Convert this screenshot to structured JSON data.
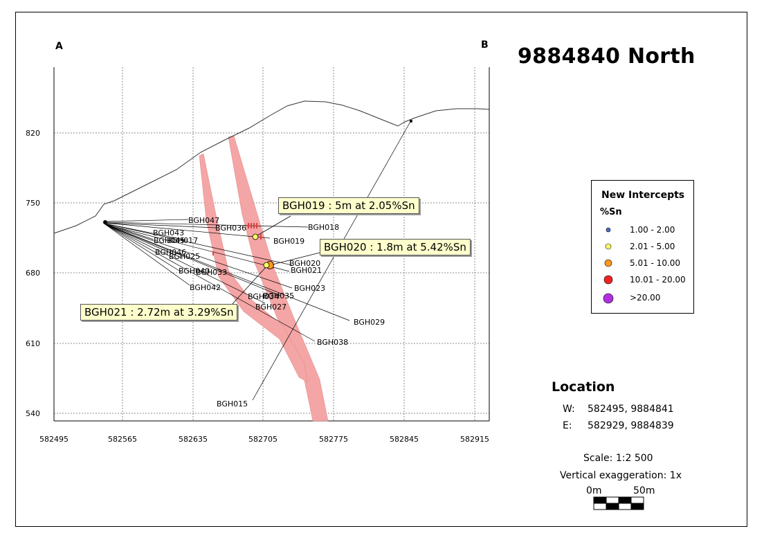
{
  "section": {
    "title": "9884840 North",
    "end_label_left": "A",
    "end_label_right": "B"
  },
  "axes": {
    "x_ticks": [
      "582495",
      "582565",
      "582635",
      "582705",
      "582775",
      "582845",
      "582915"
    ],
    "y_ticks": [
      "820",
      "750",
      "680",
      "610",
      "540"
    ]
  },
  "drillholes": [
    "BGH047",
    "BGH036",
    "BGH018",
    "BGH043",
    "BGH045",
    "BGH017",
    "BGH019",
    "BGH046",
    "BGH025",
    "BGH040",
    "BGH033",
    "BGH020",
    "BGH021",
    "BGH042",
    "BGH023",
    "BGH034",
    "BGH035",
    "BGH027",
    "BGH029",
    "BGH038",
    "BGH015"
  ],
  "callouts": {
    "bgh019": "BGH019 : 5m at 2.05%Sn",
    "bgh020": "BGH020 : 1.8m at 5.42%Sn",
    "bgh021": "BGH021 : 2.72m at 3.29%Sn"
  },
  "legend": {
    "title": "New Intercepts",
    "subtitle": "%Sn",
    "items": [
      {
        "label": "1.00 - 2.00",
        "color": "#4a6fd0"
      },
      {
        "label": "2.01 - 5.00",
        "color": "#ffff66"
      },
      {
        "label": "5.01 - 10.00",
        "color": "#ff9922"
      },
      {
        "label": "10.01 - 20.00",
        "color": "#ee2222"
      },
      {
        "label": ">20.00",
        "color": "#b030e0"
      }
    ]
  },
  "location": {
    "title": "Location",
    "w_label": "W:",
    "w_value": "582495, 9884841",
    "e_label": "E:",
    "e_value": "582929, 9884839"
  },
  "scale": {
    "text": "Scale: 1:2 500",
    "vertical_exaggeration": "Vertical exaggeration: 1x",
    "bar_start": "0m",
    "bar_end": "50m"
  },
  "colors": {
    "vein": "#f4a5a5",
    "callout_bg": "#ffffcc"
  }
}
